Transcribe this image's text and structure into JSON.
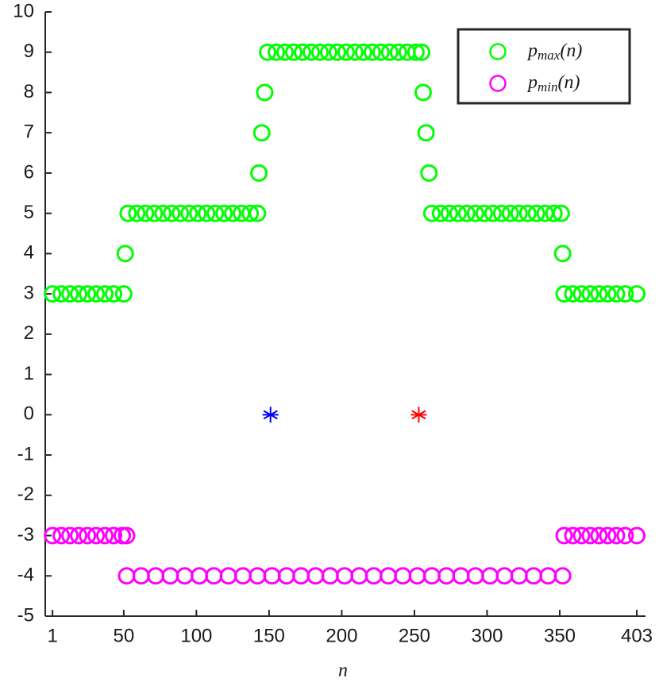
{
  "chart_data": {
    "type": "scatter",
    "x_label": "n",
    "xlim": [
      -4,
      409
    ],
    "xticks": [
      1,
      50,
      100,
      150,
      200,
      250,
      300,
      350,
      403
    ],
    "ylim": [
      -5,
      10
    ],
    "yticks": [
      -5,
      -4,
      -3,
      -2,
      -1,
      0,
      1,
      2,
      3,
      4,
      5,
      6,
      7,
      8,
      9,
      10
    ],
    "legend": "upper right",
    "series": [
      {
        "name_parts": [
          "p",
          "max",
          "(n)"
        ],
        "color": "#00ff00",
        "marker": "circle",
        "x": [
          1,
          7,
          13,
          19,
          25,
          31,
          37,
          43,
          50,
          51,
          53,
          59,
          65,
          71,
          77,
          83,
          89,
          95,
          101,
          107,
          113,
          119,
          125,
          131,
          137,
          142,
          143,
          145,
          147,
          149,
          155,
          161,
          167,
          173,
          179,
          185,
          191,
          197,
          203,
          209,
          215,
          221,
          227,
          233,
          239,
          245,
          251,
          255,
          256,
          258,
          260,
          262,
          268,
          274,
          280,
          286,
          292,
          298,
          304,
          310,
          316,
          322,
          328,
          334,
          340,
          346,
          351,
          352,
          353,
          359,
          365,
          371,
          377,
          383,
          389,
          395,
          403
        ],
        "values": [
          3,
          3,
          3,
          3,
          3,
          3,
          3,
          3,
          3,
          4,
          5,
          5,
          5,
          5,
          5,
          5,
          5,
          5,
          5,
          5,
          5,
          5,
          5,
          5,
          5,
          5,
          6,
          7,
          8,
          9,
          9,
          9,
          9,
          9,
          9,
          9,
          9,
          9,
          9,
          9,
          9,
          9,
          9,
          9,
          9,
          9,
          9,
          9,
          8,
          7,
          6,
          5,
          5,
          5,
          5,
          5,
          5,
          5,
          5,
          5,
          5,
          5,
          5,
          5,
          5,
          5,
          5,
          4,
          3,
          3,
          3,
          3,
          3,
          3,
          3,
          3,
          3
        ]
      },
      {
        "name_parts": [
          "p",
          "min",
          "(n)"
        ],
        "color": "#ff00ff",
        "marker": "circle",
        "x": [
          1,
          7,
          13,
          19,
          25,
          31,
          37,
          43,
          49,
          52,
          52,
          62,
          72,
          82,
          92,
          102,
          112,
          122,
          132,
          142,
          152,
          162,
          172,
          182,
          192,
          202,
          212,
          222,
          232,
          242,
          252,
          262,
          272,
          282,
          292,
          302,
          312,
          322,
          332,
          342,
          352,
          353,
          359,
          365,
          371,
          377,
          383,
          389,
          395,
          403
        ],
        "values": [
          -3,
          -3,
          -3,
          -3,
          -3,
          -3,
          -3,
          -3,
          -3,
          -3,
          -4,
          -4,
          -4,
          -4,
          -4,
          -4,
          -4,
          -4,
          -4,
          -4,
          -4,
          -4,
          -4,
          -4,
          -4,
          -4,
          -4,
          -4,
          -4,
          -4,
          -4,
          -4,
          -4,
          -4,
          -4,
          -4,
          -4,
          -4,
          -4,
          -4,
          -4,
          -3,
          -3,
          -3,
          -3,
          -3,
          -3,
          -3,
          -3,
          -3
        ]
      }
    ],
    "points": [
      {
        "x": 151,
        "y": 0,
        "color": "#0000ff",
        "marker": "star"
      },
      {
        "x": 253,
        "y": 0,
        "color": "#ff0000",
        "marker": "star"
      }
    ]
  }
}
